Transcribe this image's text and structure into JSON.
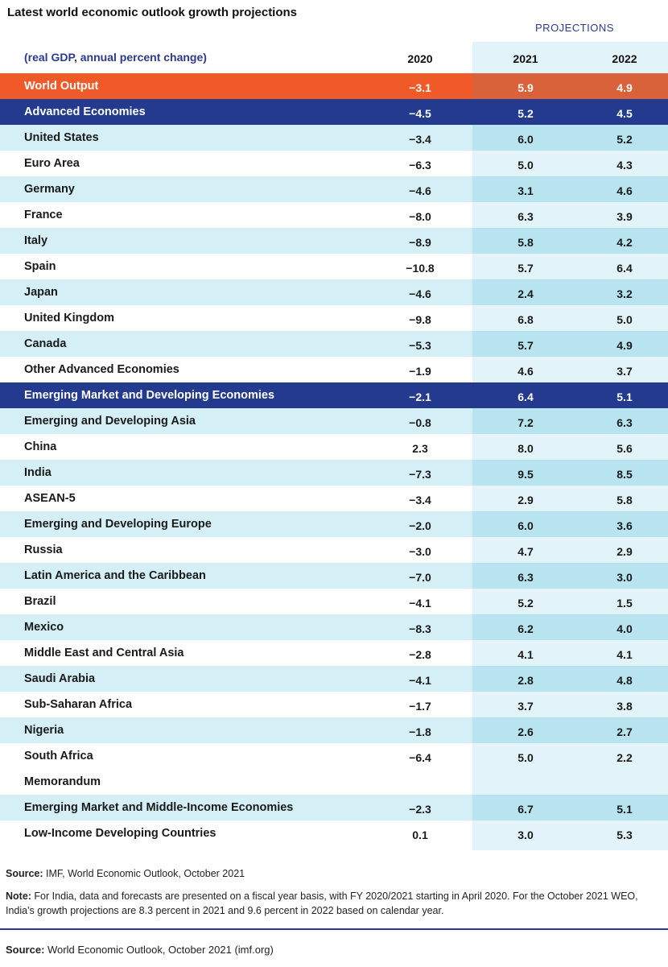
{
  "title": "Latest world economic outlook growth projections",
  "projections_label": "PROJECTIONS",
  "header": {
    "label": "(real GDP, annual percent change)",
    "years": [
      "2020",
      "2021",
      "2022"
    ]
  },
  "colors": {
    "world_output": "#f05a28",
    "group_header": "#233a8e",
    "row_shade": "#d4f0f6",
    "projection_shade": "#b8e4ef",
    "accent_text": "#2b3a8f"
  },
  "chart_data": {
    "type": "table",
    "title": "Latest world economic outlook growth projections",
    "columns": [
      "2020",
      "2021",
      "2022"
    ],
    "rows": [
      {
        "name": "World Output",
        "style": "world",
        "values": [
          "−3.1",
          "5.9",
          "4.9"
        ]
      },
      {
        "name": "Advanced Economies",
        "style": "group",
        "values": [
          "−4.5",
          "5.2",
          "4.5"
        ]
      },
      {
        "name": "United States",
        "style": "shade",
        "values": [
          "−3.4",
          "6.0",
          "5.2"
        ]
      },
      {
        "name": "Euro Area",
        "style": "plain",
        "values": [
          "−6.3",
          "5.0",
          "4.3"
        ]
      },
      {
        "name": "Germany",
        "style": "shade",
        "values": [
          "−4.6",
          "3.1",
          "4.6"
        ]
      },
      {
        "name": "France",
        "style": "plain",
        "values": [
          "−8.0",
          "6.3",
          "3.9"
        ]
      },
      {
        "name": "Italy",
        "style": "shade",
        "values": [
          "−8.9",
          "5.8",
          "4.2"
        ]
      },
      {
        "name": "Spain",
        "style": "plain",
        "values": [
          "−10.8",
          "5.7",
          "6.4"
        ]
      },
      {
        "name": "Japan",
        "style": "shade",
        "values": [
          "−4.6",
          "2.4",
          "3.2"
        ]
      },
      {
        "name": "United Kingdom",
        "style": "plain",
        "values": [
          "−9.8",
          "6.8",
          "5.0"
        ]
      },
      {
        "name": "Canada",
        "style": "shade",
        "values": [
          "−5.3",
          "5.7",
          "4.9"
        ]
      },
      {
        "name": "Other Advanced Economies",
        "style": "plain",
        "values": [
          "−1.9",
          "4.6",
          "3.7"
        ]
      },
      {
        "name": "Emerging Market and Developing Economies",
        "style": "group",
        "values": [
          "−2.1",
          "6.4",
          "5.1"
        ]
      },
      {
        "name": "Emerging and Developing Asia",
        "style": "shade",
        "values": [
          "−0.8",
          "7.2",
          "6.3"
        ]
      },
      {
        "name": "China",
        "style": "plain",
        "values": [
          "2.3",
          "8.0",
          "5.6"
        ]
      },
      {
        "name": "India",
        "style": "shade",
        "values": [
          "−7.3",
          "9.5",
          "8.5"
        ]
      },
      {
        "name": "ASEAN-5",
        "style": "plain",
        "values": [
          "−3.4",
          "2.9",
          "5.8"
        ]
      },
      {
        "name": "Emerging and Developing Europe",
        "style": "shade",
        "values": [
          "−2.0",
          "6.0",
          "3.6"
        ]
      },
      {
        "name": "Russia",
        "style": "plain",
        "values": [
          "−3.0",
          "4.7",
          "2.9"
        ]
      },
      {
        "name": "Latin America and the Caribbean",
        "style": "shade",
        "values": [
          "−7.0",
          "6.3",
          "3.0"
        ]
      },
      {
        "name": "Brazil",
        "style": "plain",
        "values": [
          "−4.1",
          "5.2",
          "1.5"
        ]
      },
      {
        "name": "Mexico",
        "style": "shade",
        "values": [
          "−8.3",
          "6.2",
          "4.0"
        ]
      },
      {
        "name": "Middle East and Central Asia",
        "style": "plain",
        "values": [
          "−2.8",
          "4.1",
          "4.1"
        ]
      },
      {
        "name": "Saudi Arabia",
        "style": "shade",
        "values": [
          "−4.1",
          "2.8",
          "4.8"
        ]
      },
      {
        "name": "Sub-Saharan Africa",
        "style": "plain",
        "values": [
          "−1.7",
          "3.7",
          "3.8"
        ]
      },
      {
        "name": "Nigeria",
        "style": "shade",
        "values": [
          "−1.8",
          "2.6",
          "2.7"
        ]
      },
      {
        "name": "South Africa",
        "style": "plain",
        "values": [
          "−6.4",
          "5.0",
          "2.2"
        ]
      },
      {
        "name": "Memorandum",
        "style": "plain",
        "values": [
          "",
          "",
          ""
        ]
      },
      {
        "name": "Emerging Market and Middle-Income Economies",
        "style": "shade",
        "values": [
          "−2.3",
          "6.7",
          "5.1"
        ]
      },
      {
        "name": "Low-Income Developing Countries",
        "style": "plain",
        "values": [
          "0.1",
          "3.0",
          "5.3"
        ]
      }
    ]
  },
  "footer": {
    "source1_label": "Source:",
    "source1_text": " IMF, World Economic Outlook, October 2021",
    "note_label": "Note:",
    "note_text": " For India, data and forecasts are presented on a fiscal year basis, with FY 2020/2021 starting in April 2020. For the October 2021 WEO, India's growth projections are 8.3 percent in 2021 and 9.6 percent in 2022 based on calendar year.",
    "source2_label": "Source:",
    "source2_text": " World Economic Outlook, October 2021 (imf.org)"
  }
}
